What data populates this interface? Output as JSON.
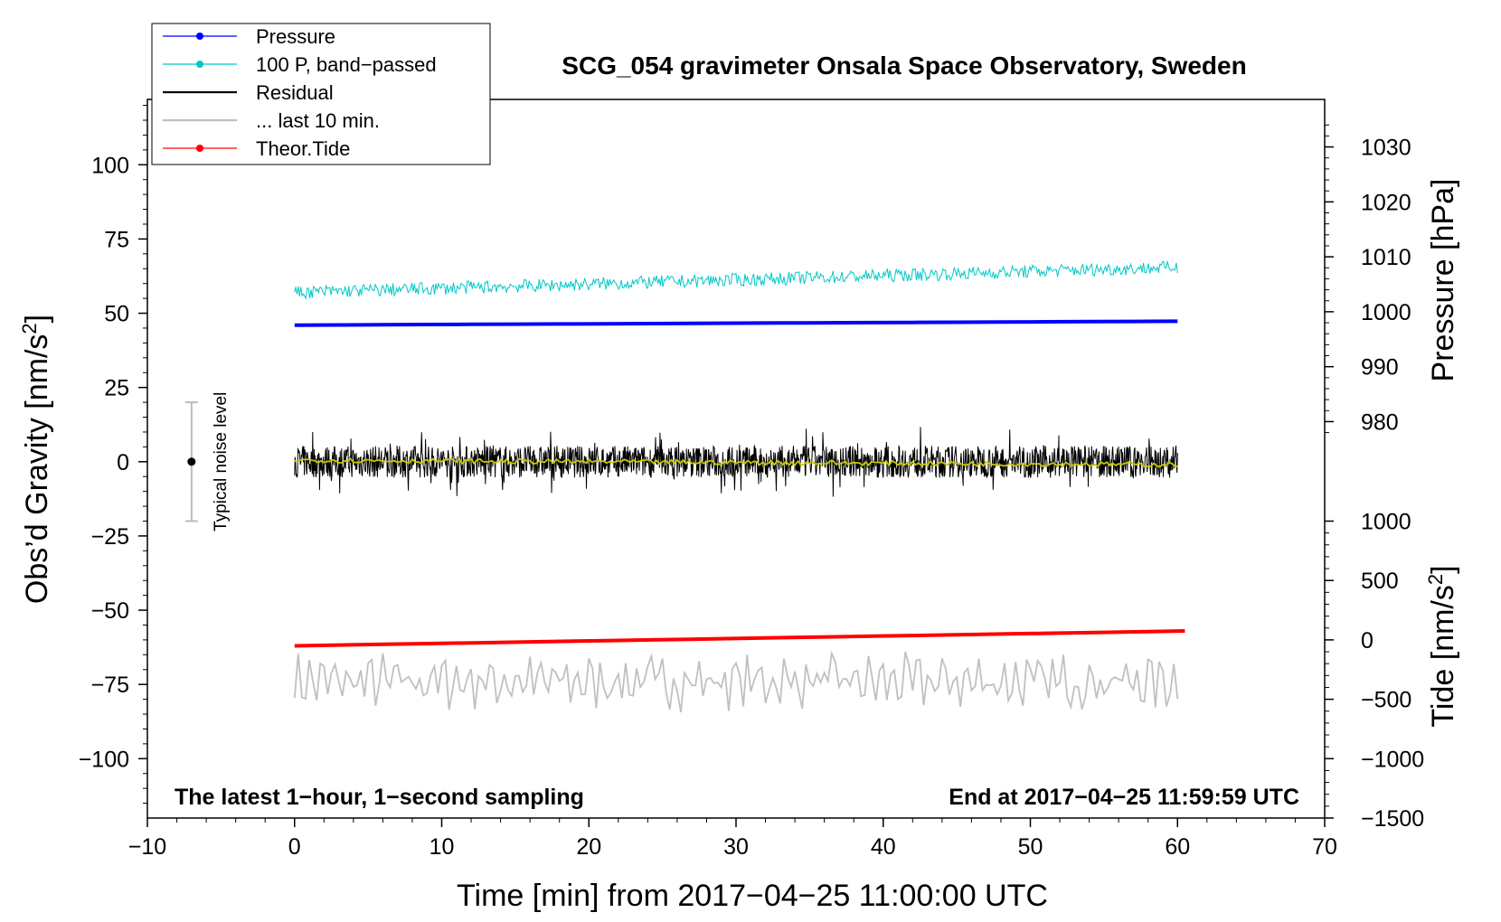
{
  "chart_data": {
    "type": "line",
    "title": "SCG_054 gravimeter Onsala Space Observatory, Sweden",
    "xlabel": "Time [min] from 2017−04−25 11:00:00 UTC",
    "ylabel_main": "Obs’d Gravity [nm/s",
    "ylabel_main_sup": "2",
    "ylabel_main_end": "]",
    "ylabel_pressure": "Pressure [hPa]",
    "ylabel_tide": "Tide [nm/s",
    "ylabel_tide_sup": "2",
    "ylabel_tide_end": "]",
    "xlim": [
      -10,
      70
    ],
    "ylim": [
      -120,
      122
    ],
    "x_ticks": [
      -10,
      0,
      10,
      20,
      30,
      40,
      50,
      60,
      70
    ],
    "x_tick_labels": [
      "−10",
      "0",
      "10",
      "20",
      "30",
      "40",
      "50",
      "60",
      "70"
    ],
    "y_ticks": [
      -100,
      -75,
      -50,
      -25,
      0,
      25,
      50,
      75,
      100
    ],
    "y_tick_labels": [
      "−100",
      "−75",
      "−50",
      "−25",
      "0",
      "25",
      "50",
      "75",
      "100"
    ],
    "pressure_axis": {
      "ticks": [
        980,
        990,
        1000,
        1010,
        1020,
        1030
      ],
      "tick_labels": [
        "980",
        "990",
        "1000",
        "1010",
        "1020",
        "1030"
      ],
      "map_gravity_at_1000": 50.5,
      "gravity_per_hpa": 1.85
    },
    "tide_axis": {
      "ticks": [
        -1500,
        -1000,
        -500,
        0,
        500,
        1000
      ],
      "tick_labels": [
        "−1500",
        "−1000",
        "−500",
        "0",
        "500",
        "1000"
      ],
      "map_gravity_at_0": -60,
      "gravity_per_unit": 0.04
    },
    "series": [
      {
        "name": "Pressure",
        "color": "#0000ff",
        "x_range": [
          0,
          60
        ],
        "gravity_start": 46.0,
        "gravity_end": 47.3
      },
      {
        "name": "100 P, band−passed",
        "color": "#00c8c8",
        "x_range": [
          0,
          60
        ],
        "gravity_start": 57.0,
        "gravity_end": 65.5,
        "noise_amp": 2.2
      },
      {
        "name": "Residual",
        "color": "#000000",
        "x_range": [
          0,
          60
        ],
        "gravity_start": 0,
        "gravity_end": 0,
        "noise_amp": 9.0
      },
      {
        "name": "... last 10 min.",
        "color": "#c0c0c0",
        "x_range": [
          0,
          60
        ],
        "gravity_start": -74,
        "gravity_end": -74,
        "noise_amp": 8.0
      },
      {
        "name": "Theor.Tide",
        "color": "#ff0000",
        "x_range": [
          0,
          60.5
        ],
        "gravity_start": -62.0,
        "gravity_end": -57.0
      },
      {
        "name": "smoothed residual",
        "color": "#c8c800",
        "x_range": [
          0,
          60
        ],
        "gravity_start": 0.5,
        "gravity_end": -1.0
      }
    ],
    "legend": [
      {
        "label": "Pressure",
        "color": "#0000ff",
        "marker": true
      },
      {
        "label": "100 P, band−passed",
        "color": "#00c8c8",
        "marker": true
      },
      {
        "label": "Residual",
        "color": "#000000",
        "marker": false
      },
      {
        "label": "... last 10 min.",
        "color": "#c0c0c0",
        "marker": false
      },
      {
        "label": "Theor.Tide",
        "color": "#ff0000",
        "marker": true
      }
    ],
    "noise_bar": {
      "x": -7,
      "y": 0,
      "low": -20,
      "high": 20,
      "label": "Typical noise level"
    },
    "annotation_left": "The latest 1−hour, 1−second sampling",
    "annotation_right": "End at 2017−04−25 11:59:59 UTC"
  }
}
